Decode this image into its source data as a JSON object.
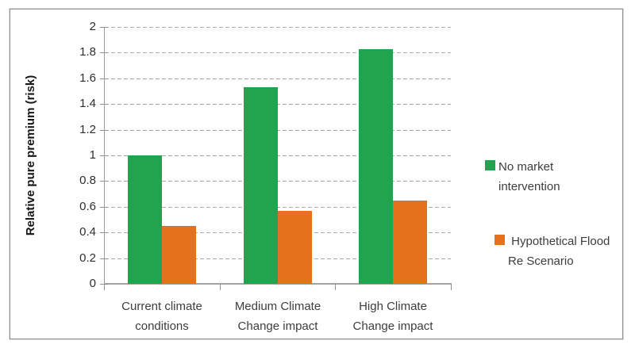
{
  "chart_data": {
    "type": "bar",
    "title": "",
    "categories": [
      "Current climate\nconditions",
      "Medium Climate\nChange impact",
      "High Climate\nChange impact"
    ],
    "series": [
      {
        "name": "No market intervention",
        "color": "#22A34F",
        "values": [
          1.0,
          1.53,
          1.83
        ]
      },
      {
        "name": "Hypothetical Flood Re Scenario",
        "color": "#E6711D",
        "values": [
          0.45,
          0.57,
          0.65
        ]
      }
    ],
    "xlabel": "",
    "ylabel": "Relative pure premium (risk)",
    "ylim": [
      0,
      2
    ],
    "ytick_step": 0.2,
    "ytick_labels": [
      "0",
      "0.2",
      "0.4",
      "0.6",
      "0.8",
      "1",
      "1.2",
      "1.4",
      "1.6",
      "1.8",
      "2"
    ],
    "grid": "horizontal-dashed",
    "legend_position": "right",
    "legend": [
      {
        "label": "No market\nintervention",
        "color": "#22A34F"
      },
      {
        "label": " Hypothetical Flood\nRe Scenario",
        "color": "#E6711D"
      }
    ]
  },
  "colors": {
    "series_green": "#22A34F",
    "series_orange": "#E6711D",
    "axis_line": "#9B9B9B",
    "gridline": "#AAAAAA",
    "tick_text": "#2E2E2E",
    "label_text": "#3D3D3D",
    "frame_border": "#8F8F8F"
  }
}
